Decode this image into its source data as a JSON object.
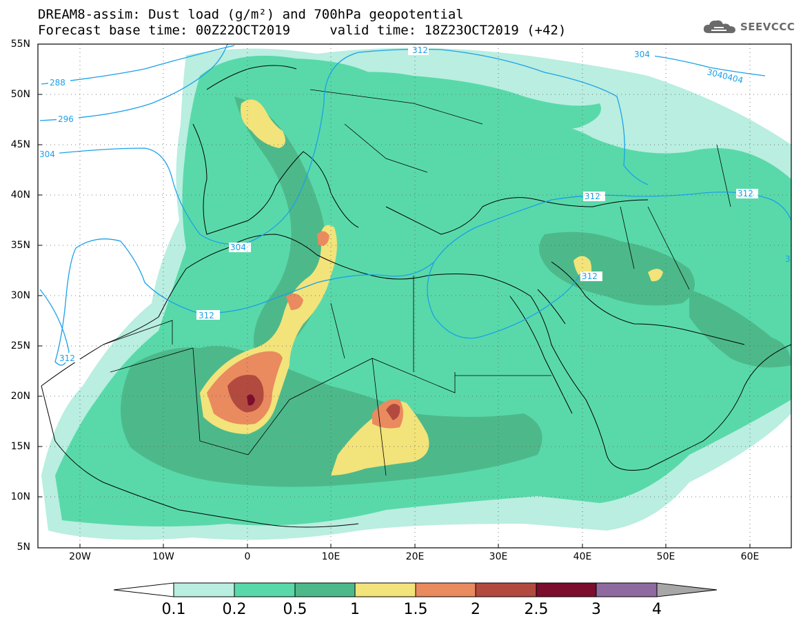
{
  "title": {
    "line1": "DREAM8-assim: Dust load (g/m²) and 700hPa geopotential",
    "line2": "Forecast base time: 00Z22OCT2019     valid time: 18Z23OCT2019 (+42)"
  },
  "logo": {
    "icon": "cloud-icon",
    "text": "SEEVCCC"
  },
  "axes": {
    "lat_labels": [
      "55N",
      "50N",
      "45N",
      "40N",
      "35N",
      "30N",
      "25N",
      "20N",
      "15N",
      "10N",
      "5N"
    ],
    "lon_labels": [
      "20W",
      "10W",
      "0",
      "10E",
      "20E",
      "30E",
      "40E",
      "50E",
      "60E"
    ]
  },
  "contours": {
    "color": "#1ba0e8",
    "labels": [
      "288",
      "296",
      "304",
      "312",
      "304",
      "312",
      "312",
      "312",
      "312",
      "304",
      "3040404",
      "312",
      "3"
    ]
  },
  "colorbar": {
    "ticks": [
      "0.1",
      "0.2",
      "0.5",
      "1",
      "1.5",
      "2",
      "2.5",
      "3",
      "4"
    ],
    "colors": [
      "#ffffff",
      "#b9eee0",
      "#59d9a9",
      "#4db98a",
      "#f2e37a",
      "#ea8a5f",
      "#b24a3f",
      "#7c0d2c",
      "#8e6aa0",
      "#a7a7a7"
    ]
  },
  "dust_colors": {
    "c01": "#b9eee0",
    "c02": "#59d9a9",
    "c05": "#4db98a",
    "c10": "#f2e37a",
    "c15": "#ea8a5f",
    "c20": "#b24a3f",
    "c25": "#7c0d2c"
  }
}
